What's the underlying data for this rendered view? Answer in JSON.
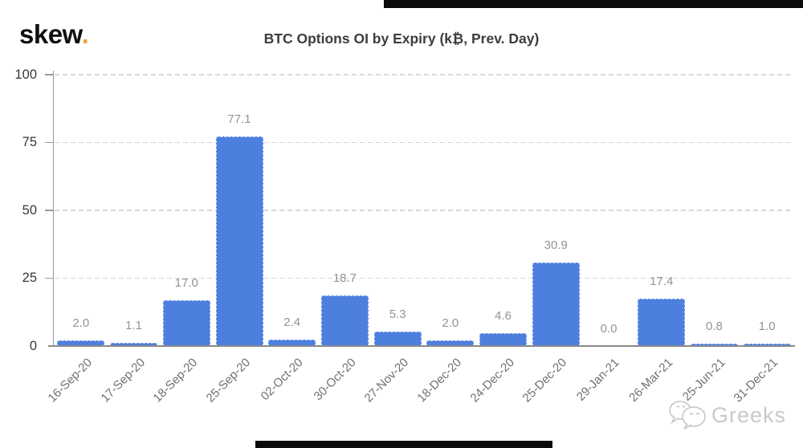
{
  "header": {
    "logo_text": "skew",
    "logo_dot": ".",
    "logo_dot_color": "#f0a73c"
  },
  "chart_data": {
    "type": "bar",
    "title": "BTC Options OI by Expiry (k₿, Prev. Day)",
    "categories": [
      "16-Sep-20",
      "17-Sep-20",
      "18-Sep-20",
      "25-Sep-20",
      "02-Oct-20",
      "30-Oct-20",
      "27-Nov-20",
      "18-Dec-20",
      "24-Dec-20",
      "25-Dec-20",
      "29-Jan-21",
      "26-Mar-21",
      "25-Jun-21",
      "31-Dec-21"
    ],
    "values": [
      2.0,
      1.1,
      17.0,
      77.1,
      2.4,
      18.7,
      5.3,
      2.0,
      4.6,
      30.9,
      0.0,
      17.4,
      0.8,
      1.0
    ],
    "value_labels": [
      "2.0",
      "1.1",
      "17.0",
      "77.1",
      "2.4",
      "18.7",
      "5.3",
      "2.0",
      "4.6",
      "30.9",
      "0.0",
      "17.4",
      "0.8",
      "1.0"
    ],
    "xlabel": "",
    "ylabel": "",
    "ylim": [
      0,
      100
    ],
    "y_ticks": [
      0,
      25,
      50,
      75,
      100
    ],
    "y_tick_labels": [
      "0",
      "25",
      "50",
      "75",
      "100"
    ],
    "grid": "horizontal-dashed",
    "legend": "none",
    "bar_color": "#4d7fdf",
    "value_label_color": "#919397",
    "axis_label_color": "#6e7073"
  },
  "watermark": {
    "text": "Greeks",
    "icon": "wechat-bubbles-icon",
    "color": "#c9c9c9"
  }
}
